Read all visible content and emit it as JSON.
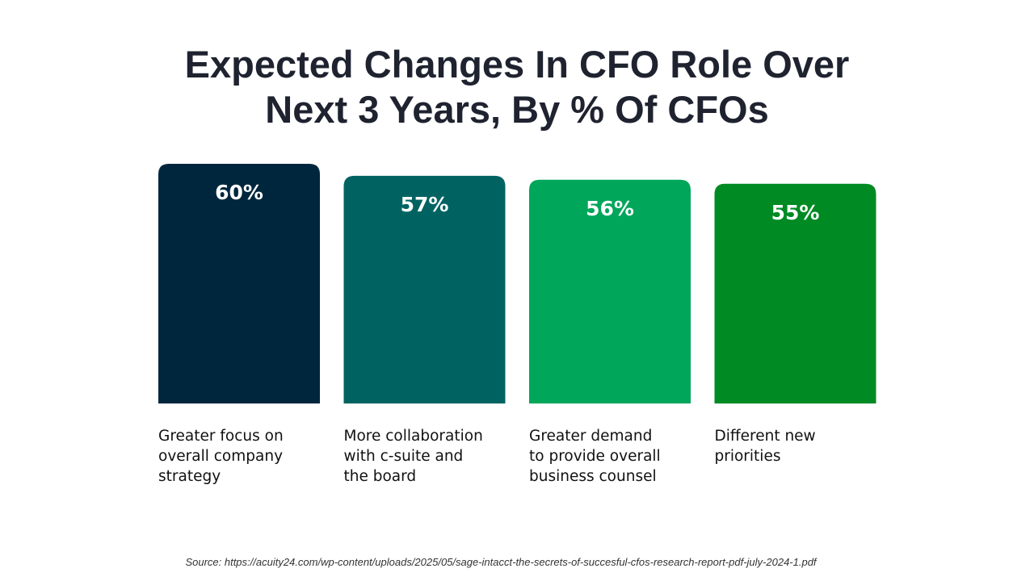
{
  "title_line1": "Expected Changes In CFO Role Over",
  "title_line2": "Next 3 Years, By % Of CFOs",
  "source": "Source: https://acuity24.com/wp-content/uploads/2025/05/sage-intacct-the-secrets-of-succesful-cfos-research-report-pdf-july-2024-1.pdf",
  "chart_data": {
    "type": "bar",
    "title": "Expected Changes In CFO Role Over Next 3 Years, By % Of CFOs",
    "categories": [
      [
        "Greater focus on",
        "overall company",
        "strategy"
      ],
      [
        "More collaboration",
        "with c-suite and",
        "the board"
      ],
      [
        "Greater demand",
        "to provide overall",
        "business counsel"
      ],
      [
        "Different new",
        "priorities"
      ]
    ],
    "values": [
      60,
      57,
      56,
      55
    ],
    "value_labels": [
      "60%",
      "57%",
      "56%",
      "55%"
    ],
    "bar_colors": [
      "#00263e",
      "#006362",
      "#00a65a",
      "#008a23"
    ],
    "value_label_color": "#ffffff",
    "category_label_color": "#111111",
    "grid": false,
    "legend": "none"
  }
}
